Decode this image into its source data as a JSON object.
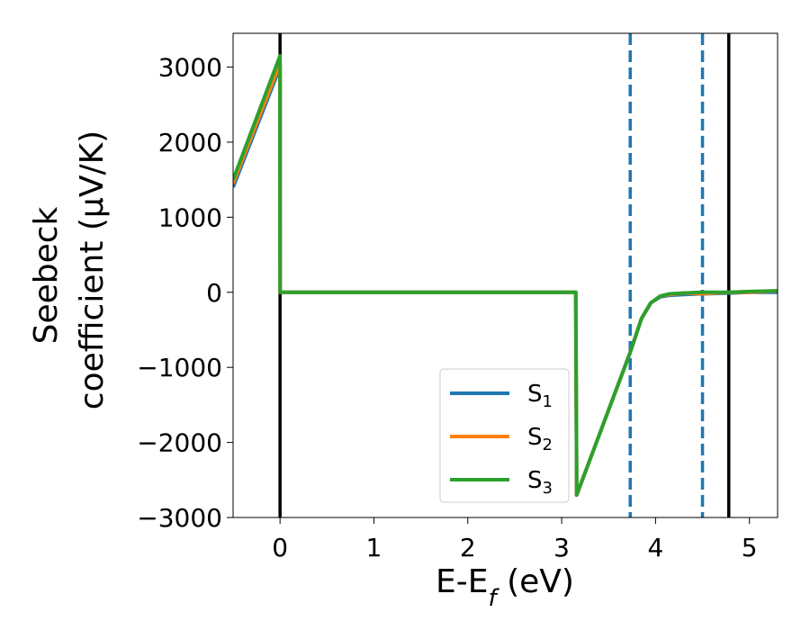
{
  "chart_data": {
    "type": "line",
    "title": "",
    "xlabel": "E-E_f (eV)",
    "ylabel_line1": "Seebeck",
    "ylabel_line2": "coefficient  (μV/K)",
    "xlim": [
      -0.5,
      5.3
    ],
    "ylim": [
      -3000,
      3450
    ],
    "xticks": [
      0,
      1,
      2,
      3,
      4,
      5
    ],
    "yticks": [
      -3000,
      -2000,
      -1000,
      0,
      1000,
      2000,
      3000
    ],
    "ytick_labels": [
      "−3000",
      "−2000",
      "−1000",
      "0",
      "1000",
      "2000",
      "3000"
    ],
    "grid": false,
    "legend_position": "lower-right",
    "vlines": [
      {
        "x": 0.0,
        "style": "solid",
        "color": "#000000"
      },
      {
        "x": 3.73,
        "style": "dashed",
        "color": "#1f77b4"
      },
      {
        "x": 4.5,
        "style": "dashed",
        "color": "#1f77b4"
      },
      {
        "x": 4.78,
        "style": "solid",
        "color": "#000000"
      }
    ],
    "series": [
      {
        "name": "S",
        "sub": "1",
        "color": "#1f77b4",
        "x": [
          -0.5,
          0.0,
          0.001,
          3.15,
          3.16,
          3.73,
          3.85,
          3.95,
          4.05,
          4.15,
          4.3,
          4.5,
          4.78,
          5.0,
          5.3
        ],
        "y": [
          1400,
          3000,
          0,
          0,
          -2700,
          -800,
          -350,
          -140,
          -60,
          -40,
          -30,
          -20,
          -10,
          0,
          0
        ]
      },
      {
        "name": "S",
        "sub": "2",
        "color": "#ff7f0e",
        "x": [
          -0.5,
          0.0,
          0.001,
          3.15,
          3.16,
          3.73,
          3.85,
          3.95,
          4.05,
          4.15,
          4.3,
          4.5,
          4.78,
          5.0,
          5.3
        ],
        "y": [
          1450,
          3050,
          0,
          0,
          -2700,
          -800,
          -350,
          -140,
          -50,
          -30,
          -10,
          -20,
          0,
          0,
          20
        ]
      },
      {
        "name": "S",
        "sub": "3",
        "color": "#2ca02c",
        "x": [
          -0.5,
          0.0,
          0.001,
          3.15,
          3.16,
          3.73,
          3.85,
          3.95,
          4.05,
          4.15,
          4.3,
          4.5,
          4.78,
          5.0,
          5.3
        ],
        "y": [
          1500,
          3150,
          0,
          0,
          -2700,
          -800,
          -350,
          -140,
          -50,
          -20,
          -10,
          0,
          0,
          10,
          20
        ]
      }
    ]
  }
}
